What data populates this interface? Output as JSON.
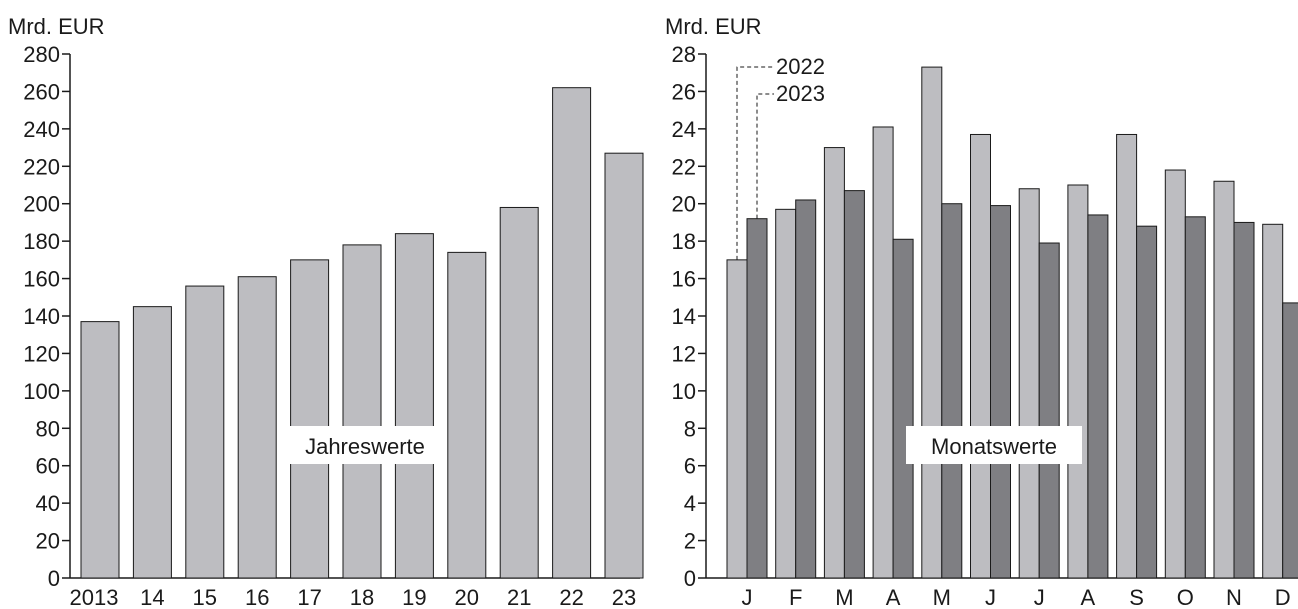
{
  "colors": {
    "series_2022": "#bdbdc1",
    "series_2023": "#7f7f83",
    "annual_bar": "#bdbdc1",
    "axis": "#1a1a1a",
    "bar_outline": "#1a1a1a"
  },
  "chart_data": [
    {
      "type": "bar",
      "ylabel": "Mrd. EUR",
      "ylim": [
        0,
        280
      ],
      "yticks": [
        0,
        20,
        40,
        60,
        80,
        100,
        120,
        140,
        160,
        180,
        200,
        220,
        240,
        260,
        280
      ],
      "categories": [
        "2013",
        "14",
        "15",
        "16",
        "17",
        "18",
        "19",
        "20",
        "21",
        "22",
        "23"
      ],
      "values": [
        137,
        145,
        156,
        161,
        170,
        178,
        184,
        174,
        198,
        262,
        227
      ],
      "annotation": "Jahreswerte",
      "grid": false
    },
    {
      "type": "bar",
      "ylabel": "Mrd. EUR",
      "ylim": [
        0,
        28
      ],
      "yticks": [
        0,
        2,
        4,
        6,
        8,
        10,
        12,
        14,
        16,
        18,
        20,
        22,
        24,
        26,
        28
      ],
      "categories": [
        "J",
        "F",
        "M",
        "A",
        "M",
        "J",
        "J",
        "A",
        "S",
        "O",
        "N",
        "D"
      ],
      "series": [
        {
          "name": "2022",
          "values": [
            17.0,
            19.7,
            23.0,
            24.1,
            27.3,
            23.7,
            20.8,
            21.0,
            23.7,
            21.8,
            21.2,
            18.9
          ]
        },
        {
          "name": "2023",
          "values": [
            19.2,
            20.2,
            20.7,
            18.1,
            20.0,
            19.9,
            17.9,
            19.4,
            18.8,
            19.3,
            19.0,
            14.7
          ]
        }
      ],
      "annotation": "Monatswerte",
      "legend": "callouts top-left",
      "grid": false
    }
  ]
}
